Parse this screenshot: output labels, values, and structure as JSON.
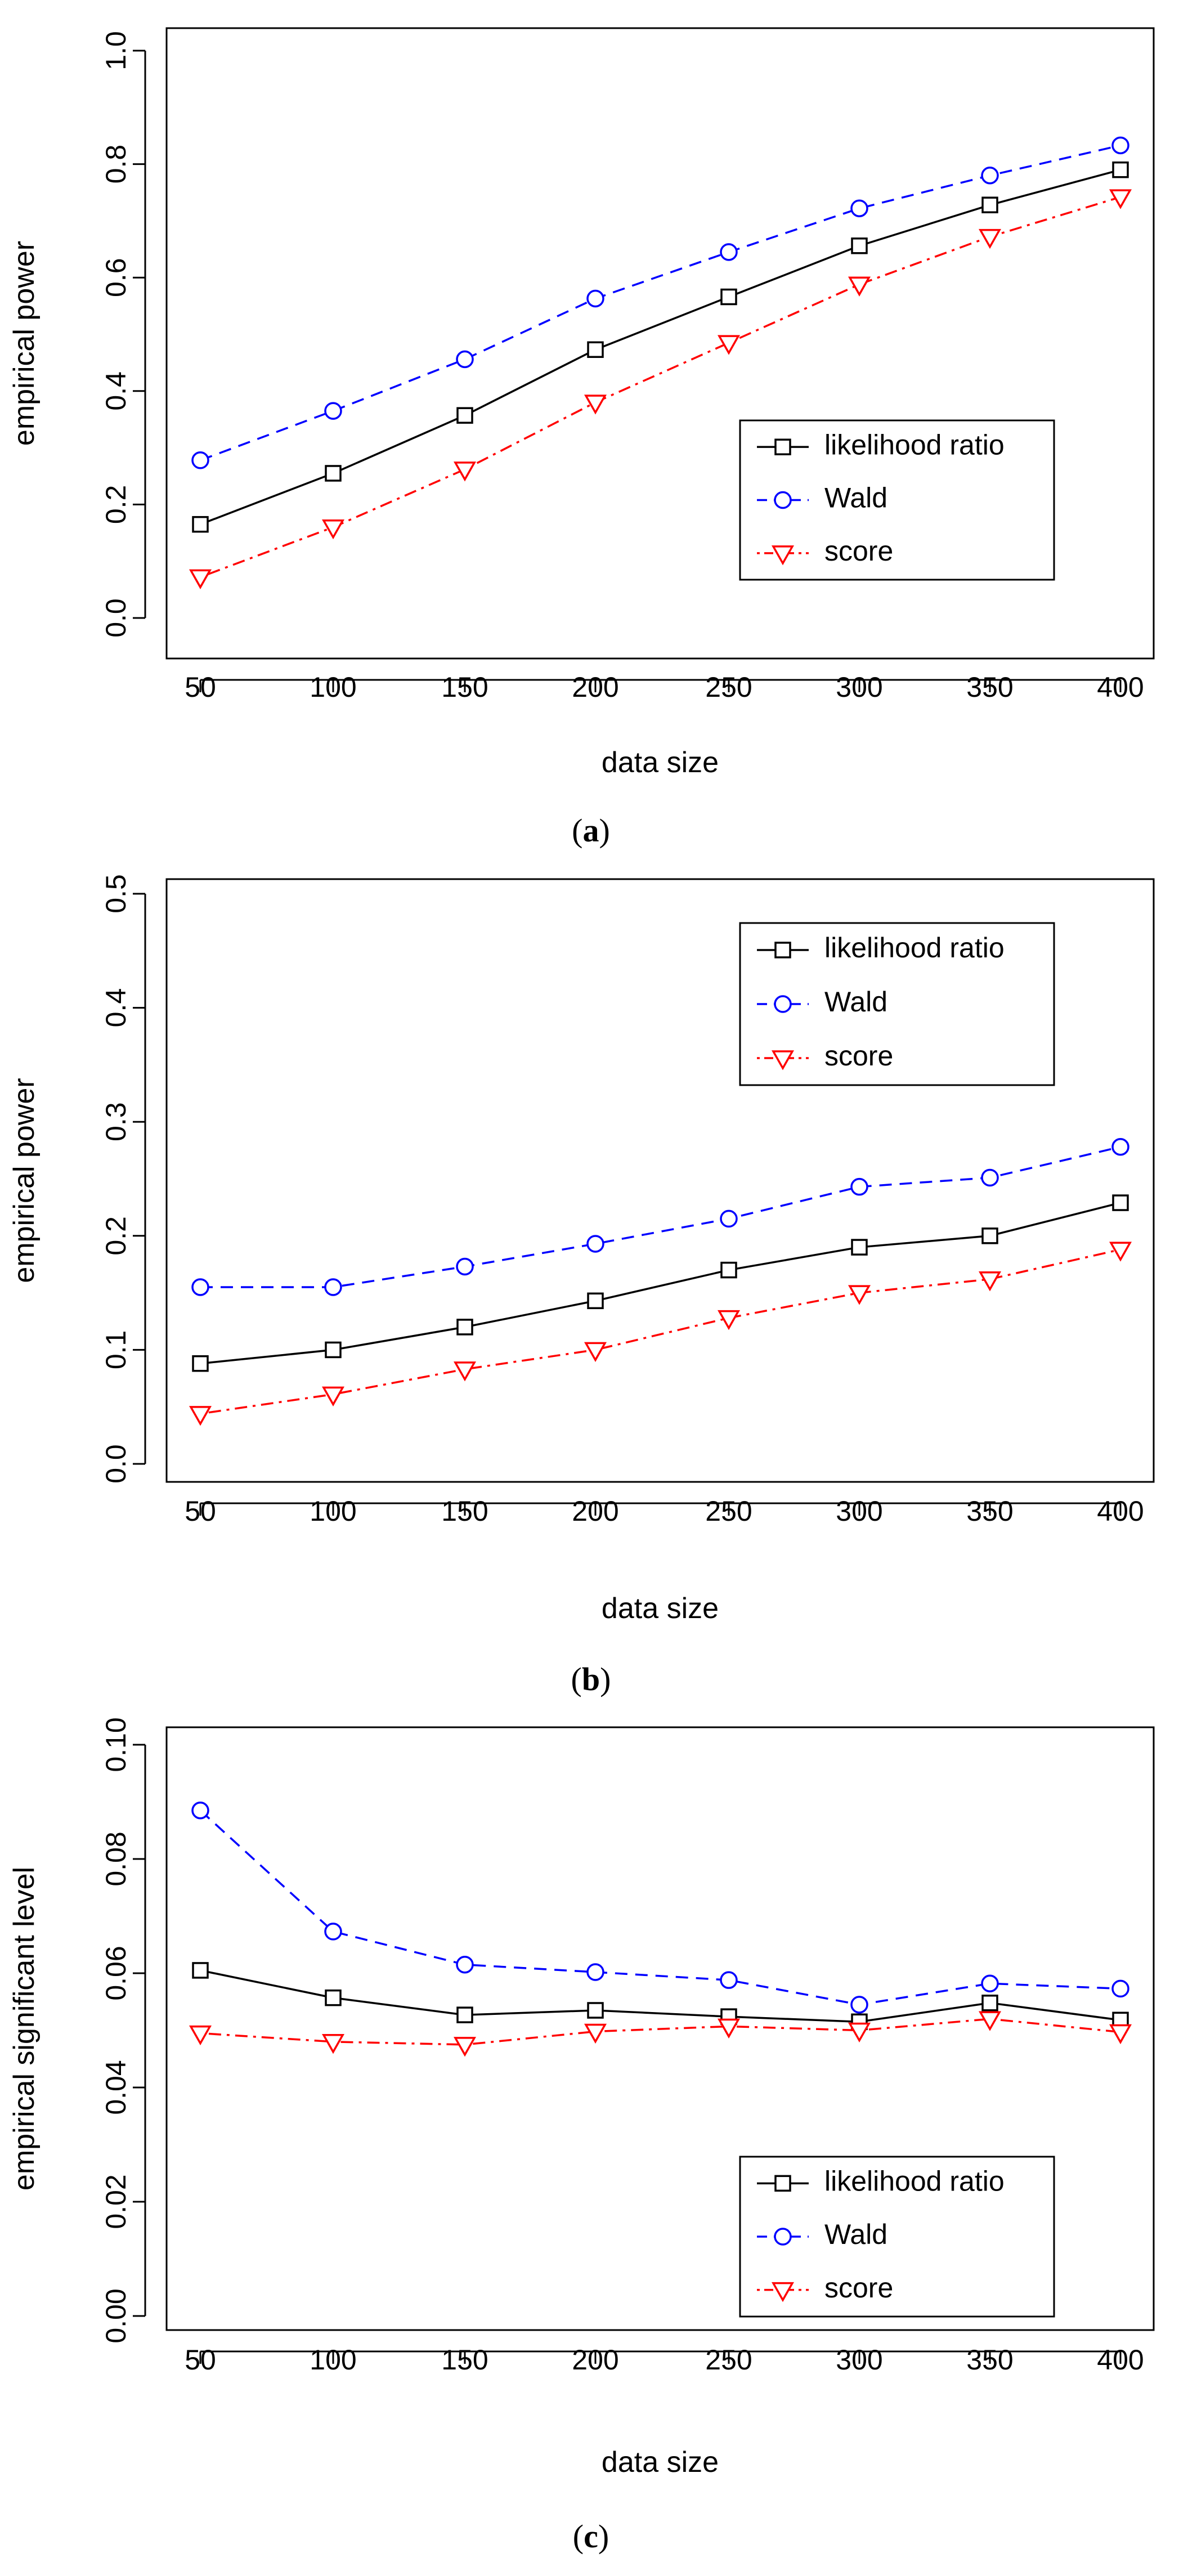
{
  "chart_data": [
    {
      "type": "line",
      "panel_label": "a",
      "caption_open": "(",
      "caption_close": ")",
      "xlabel": "data size",
      "ylabel": "empirical power",
      "x": [
        50,
        100,
        150,
        200,
        250,
        300,
        350,
        400
      ],
      "x_ticks": [
        "50",
        "100",
        "150",
        "200",
        "250",
        "300",
        "350",
        "400"
      ],
      "ylim": [
        0,
        1.0
      ],
      "y_ticks": [
        "0.0",
        "0.2",
        "0.4",
        "0.6",
        "0.8",
        "1.0"
      ],
      "y_tick_values": [
        0,
        0.2,
        0.4,
        0.6,
        0.8,
        1.0
      ],
      "legend_position": "bottom-right",
      "series": [
        {
          "name": "likelihood ratio",
          "color": "#000000",
          "marker": "square",
          "line": "solid",
          "values": [
            0.165,
            0.255,
            0.357,
            0.473,
            0.566,
            0.656,
            0.728,
            0.79
          ]
        },
        {
          "name": "Wald",
          "color": "#0000ff",
          "marker": "circle",
          "line": "dashed",
          "values": [
            0.278,
            0.365,
            0.456,
            0.563,
            0.645,
            0.722,
            0.78,
            0.833
          ]
        },
        {
          "name": "score",
          "color": "#ff0000",
          "marker": "triangle-down",
          "line": "dotdash",
          "values": [
            0.072,
            0.16,
            0.262,
            0.38,
            0.485,
            0.588,
            0.672,
            0.742
          ]
        }
      ]
    },
    {
      "type": "line",
      "panel_label": "b",
      "caption_open": "(",
      "caption_close": ")",
      "xlabel": "data size",
      "ylabel": "empirical power",
      "x": [
        50,
        100,
        150,
        200,
        250,
        300,
        350,
        400
      ],
      "x_ticks": [
        "50",
        "100",
        "150",
        "200",
        "250",
        "300",
        "350",
        "400"
      ],
      "ylim": [
        0,
        0.5
      ],
      "y_ticks": [
        "0.0",
        "0.1",
        "0.2",
        "0.3",
        "0.4",
        "0.5"
      ],
      "y_tick_values": [
        0,
        0.1,
        0.2,
        0.3,
        0.4,
        0.5
      ],
      "legend_position": "top-right",
      "series": [
        {
          "name": "likelihood ratio",
          "color": "#000000",
          "marker": "square",
          "line": "solid",
          "values": [
            0.088,
            0.1,
            0.12,
            0.143,
            0.17,
            0.19,
            0.2,
            0.229
          ]
        },
        {
          "name": "Wald",
          "color": "#0000ff",
          "marker": "circle",
          "line": "dashed",
          "values": [
            0.155,
            0.155,
            0.173,
            0.193,
            0.215,
            0.243,
            0.251,
            0.278
          ]
        },
        {
          "name": "score",
          "color": "#ff0000",
          "marker": "triangle-down",
          "line": "dotdash",
          "values": [
            0.044,
            0.061,
            0.083,
            0.1,
            0.128,
            0.15,
            0.162,
            0.188
          ]
        }
      ]
    },
    {
      "type": "line",
      "panel_label": "c",
      "caption_open": "(",
      "caption_close": ")",
      "xlabel": "data size",
      "ylabel": "empirical significant level",
      "x": [
        50,
        100,
        150,
        200,
        250,
        300,
        350,
        400
      ],
      "x_ticks": [
        "50",
        "100",
        "150",
        "200",
        "250",
        "300",
        "350",
        "400"
      ],
      "ylim": [
        0,
        0.1
      ],
      "y_ticks": [
        "0.00",
        "0.02",
        "0.04",
        "0.06",
        "0.08",
        "0.10"
      ],
      "y_tick_values": [
        0,
        0.02,
        0.04,
        0.06,
        0.08,
        0.1
      ],
      "legend_position": "bottom-right",
      "series": [
        {
          "name": "likelihood ratio",
          "color": "#000000",
          "marker": "square",
          "line": "solid",
          "values": [
            0.0605,
            0.0557,
            0.0527,
            0.0535,
            0.0524,
            0.0515,
            0.0548,
            0.0518
          ]
        },
        {
          "name": "Wald",
          "color": "#0000ff",
          "marker": "circle",
          "line": "dashed",
          "values": [
            0.0885,
            0.0673,
            0.0615,
            0.0602,
            0.0588,
            0.0545,
            0.0582,
            0.0573
          ]
        },
        {
          "name": "score",
          "color": "#ff0000",
          "marker": "triangle-down",
          "line": "dotdash",
          "values": [
            0.0495,
            0.048,
            0.0475,
            0.0498,
            0.0507,
            0.05,
            0.052,
            0.0497
          ]
        }
      ]
    }
  ]
}
